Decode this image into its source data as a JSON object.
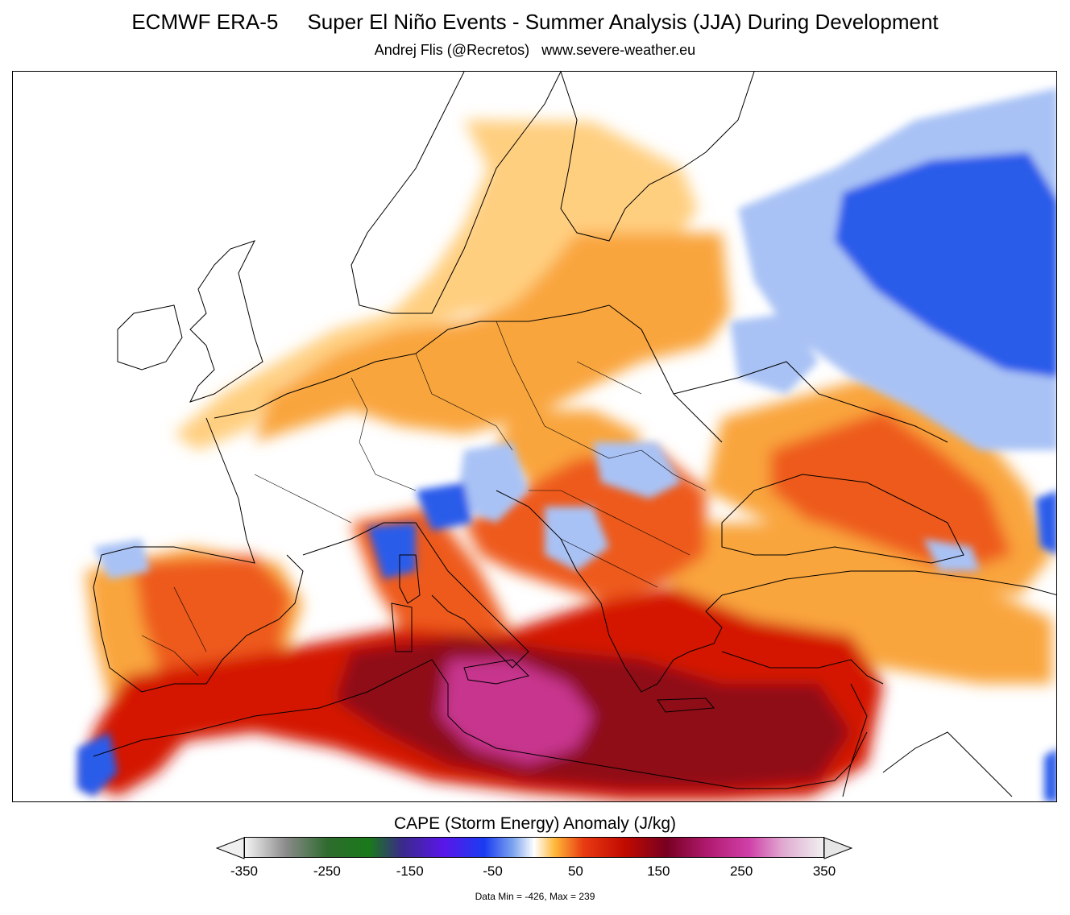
{
  "header": {
    "title": "ECMWF ERA-5     Super El Niño Events - Summer Analysis (JJA) During Development",
    "subtitle": "Andrej Flis (@Recretos)   www.severe-weather.eu"
  },
  "colorbar": {
    "title": "CAPE (Storm Energy) Anomaly (J/kg)",
    "ticks": [
      "-350",
      "-250",
      "-150",
      "-50",
      "50",
      "150",
      "250",
      "350"
    ],
    "min_value": -350,
    "max_value": 350,
    "stops": [
      {
        "value": -350,
        "color": "#f4f4f4"
      },
      {
        "value": -300,
        "color": "#8a8a8a"
      },
      {
        "value": -250,
        "color": "#2e6b2e"
      },
      {
        "value": -200,
        "color": "#1a7a1a"
      },
      {
        "value": -160,
        "color": "#3a2a8a"
      },
      {
        "value": -110,
        "color": "#5a16e8"
      },
      {
        "value": -60,
        "color": "#1a3cf2"
      },
      {
        "value": -25,
        "color": "#7fa6ee"
      },
      {
        "value": 0,
        "color": "#ffffff"
      },
      {
        "value": 25,
        "color": "#ffb838"
      },
      {
        "value": 60,
        "color": "#e83a12"
      },
      {
        "value": 110,
        "color": "#c00a00"
      },
      {
        "value": 160,
        "color": "#780020"
      },
      {
        "value": 210,
        "color": "#b01a70"
      },
      {
        "value": 260,
        "color": "#d040a8"
      },
      {
        "value": 300,
        "color": "#e0a8d0"
      },
      {
        "value": 350,
        "color": "#f0f0f0"
      }
    ],
    "data_min_max": "Data Min = -426, Max = 239"
  },
  "map": {
    "anomaly_colors": {
      "light_orange": "#ffcf80",
      "orange": "#f9a53c",
      "red_orange": "#ee5a1e",
      "red": "#d41500",
      "dark_red": "#8e0a14",
      "magenta": "#c7348e",
      "light_blue": "#a9c2f5",
      "blue": "#2a5bea"
    }
  }
}
